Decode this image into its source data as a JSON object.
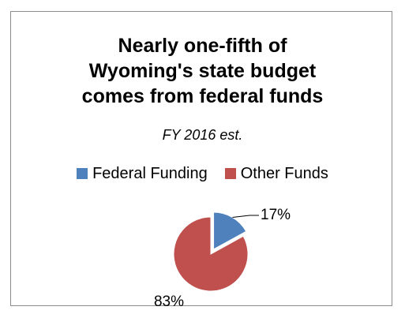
{
  "chart_data": {
    "type": "pie",
    "title_lines": [
      "Nearly one-fifth of",
      "Wyoming's state budget",
      "comes from federal funds"
    ],
    "subtitle": "FY 2016 est.",
    "legend_position": "top",
    "slices": [
      {
        "name": "Federal Funding",
        "value": 17,
        "label": "17%",
        "color": "#4f81bd",
        "exploded": true
      },
      {
        "name": "Other Funds",
        "value": 83,
        "label": "83%",
        "color": "#c0504d",
        "exploded": false
      }
    ]
  }
}
